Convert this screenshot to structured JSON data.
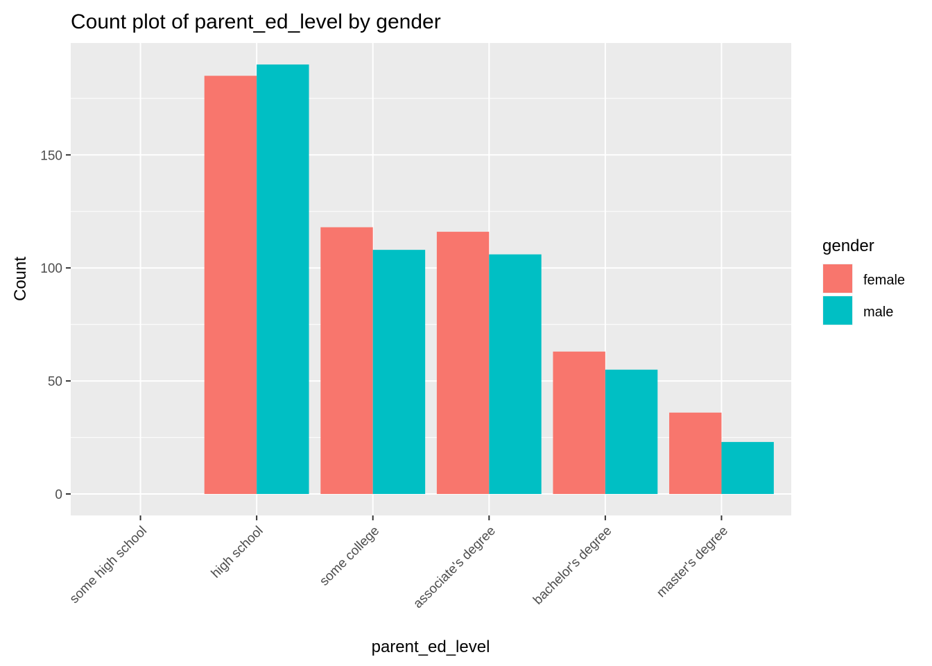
{
  "chart_data": {
    "type": "bar",
    "title": "Count plot of parent_ed_level by gender",
    "xlabel": "parent_ed_level",
    "ylabel": "Count",
    "categories": [
      "some high school",
      "high school",
      "some college",
      "associate's degree",
      "bachelor's degree",
      "master's degree"
    ],
    "series": [
      {
        "name": "female",
        "color": "#F8766D",
        "values": [
          0,
          185,
          118,
          116,
          63,
          36
        ]
      },
      {
        "name": "male",
        "color": "#00BFC4",
        "values": [
          0,
          190,
          108,
          106,
          55,
          23
        ]
      }
    ],
    "ylim": [
      -9.5,
      199.5
    ],
    "yticks": [
      0,
      50,
      100,
      150
    ],
    "ytick_labels": [
      "0",
      "50",
      "100",
      "150"
    ],
    "grid": true,
    "panel_background": "#EBEBEB",
    "legend": {
      "title": "gender",
      "position": "right"
    }
  }
}
